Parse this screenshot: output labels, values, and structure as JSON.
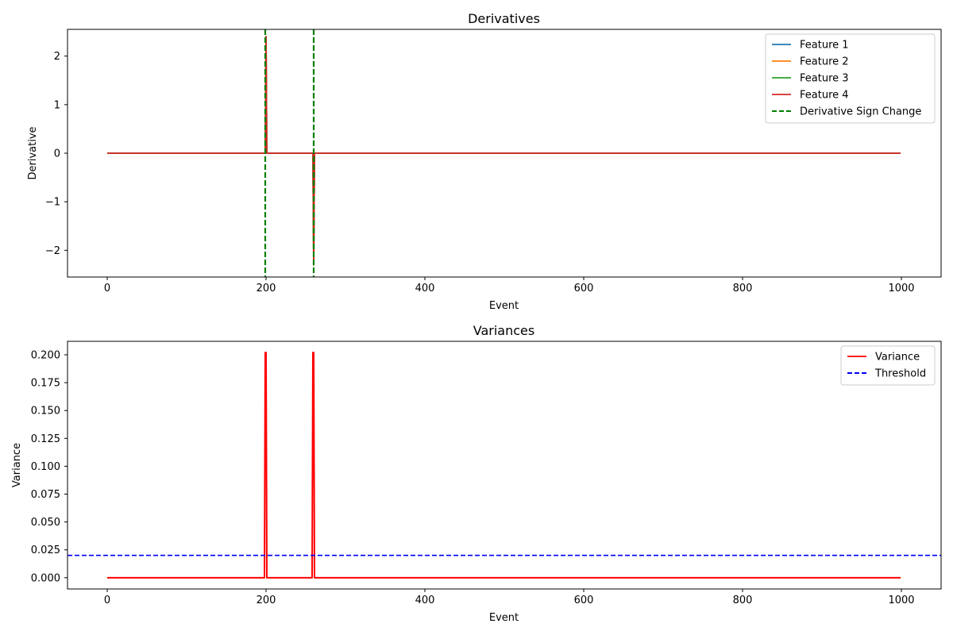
{
  "chart_data": [
    {
      "type": "line",
      "title": "Derivatives",
      "xlabel": "Event",
      "ylabel": "Derivative",
      "xlim": [
        -50,
        1050
      ],
      "ylim": [
        -2.55,
        2.55
      ],
      "xticks": [
        0,
        200,
        400,
        600,
        800,
        1000
      ],
      "xtick_labels": [
        "0",
        "200",
        "400",
        "600",
        "800",
        "1000"
      ],
      "yticks": [
        -2,
        -1,
        0,
        1,
        2
      ],
      "ytick_labels": [
        "−2",
        "−1",
        "0",
        "1",
        "2"
      ],
      "grid": false,
      "legend_position": "upper right",
      "series": [
        {
          "name": "Feature 1",
          "color": "#1f77b4",
          "style": "solid",
          "x": [
            0,
            199,
            200,
            201,
            259,
            260,
            261,
            999
          ],
          "y": [
            0,
            0,
            2.4,
            0,
            0,
            -2.3,
            0,
            0
          ]
        },
        {
          "name": "Feature 2",
          "color": "#ff7f0e",
          "style": "solid",
          "x": [
            0,
            199,
            200,
            201,
            259,
            260,
            261,
            999
          ],
          "y": [
            0,
            0,
            2.4,
            0,
            0,
            -2.3,
            0,
            0
          ]
        },
        {
          "name": "Feature 3",
          "color": "#2ca02c",
          "style": "solid",
          "x": [
            0,
            199,
            200,
            201,
            259,
            260,
            261,
            999
          ],
          "y": [
            0,
            0,
            2.4,
            0,
            0,
            -2.3,
            0,
            0
          ]
        },
        {
          "name": "Feature 4",
          "color": "#d62728",
          "style": "solid",
          "x": [
            0,
            199,
            200,
            201,
            259,
            260,
            261,
            999
          ],
          "y": [
            0,
            0,
            2.4,
            0,
            0,
            -2.3,
            0,
            0
          ]
        }
      ],
      "vlines": {
        "name": "Derivative Sign Change",
        "color": "#008000",
        "style": "dashed",
        "x": [
          199,
          260
        ]
      }
    },
    {
      "type": "line",
      "title": "Variances",
      "xlabel": "Event",
      "ylabel": "Variance",
      "xlim": [
        -50,
        1050
      ],
      "ylim": [
        -0.0101,
        0.2121
      ],
      "xticks": [
        0,
        200,
        400,
        600,
        800,
        1000
      ],
      "xtick_labels": [
        "0",
        "200",
        "400",
        "600",
        "800",
        "1000"
      ],
      "yticks": [
        0,
        0.025,
        0.05,
        0.075,
        0.1,
        0.125,
        0.15,
        0.175,
        0.2
      ],
      "ytick_labels": [
        "0.000",
        "0.025",
        "0.050",
        "0.075",
        "0.100",
        "0.125",
        "0.150",
        "0.175",
        "0.200"
      ],
      "grid": false,
      "legend_position": "upper right",
      "series": [
        {
          "name": "Variance",
          "color": "#ff0000",
          "style": "solid",
          "x": [
            0,
            198,
            199,
            200,
            201,
            258,
            259,
            260,
            261,
            999
          ],
          "y": [
            0,
            0,
            0.202,
            0.202,
            0,
            0,
            0.202,
            0.202,
            0,
            0
          ]
        }
      ],
      "hlines": {
        "name": "Threshold",
        "color": "#0000ff",
        "style": "dashed",
        "y": [
          0.02
        ]
      }
    }
  ]
}
